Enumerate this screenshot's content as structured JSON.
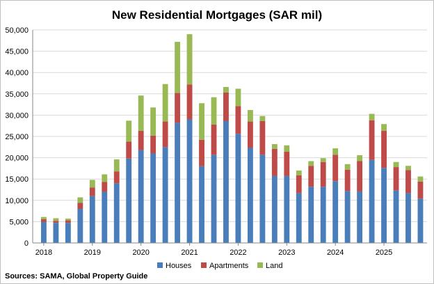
{
  "chart_data": {
    "type": "bar",
    "stacked": true,
    "title": "New Residential Mortgages (SAR mil)",
    "source": "Sources: SAMA, Global Property Guide",
    "ylim": [
      0,
      50000
    ],
    "y_ticks": [
      "0",
      "5,000",
      "10,000",
      "15,000",
      "20,000",
      "25,000",
      "30,000",
      "35,000",
      "40,000",
      "45,000",
      "50,000"
    ],
    "year_labels": [
      "2018",
      "2019",
      "2020",
      "2021",
      "2022",
      "2023",
      "2024",
      "2025"
    ],
    "year_start_index": [
      0,
      4,
      8,
      12,
      16,
      20,
      24,
      28
    ],
    "legend_position": "bottom",
    "colors": {
      "houses": "#4a7ebb",
      "apartments": "#be4b48",
      "land": "#98b954"
    },
    "series": [
      {
        "name": "Houses",
        "key": "houses",
        "values": [
          4900,
          4700,
          4700,
          8000,
          11000,
          12000,
          14000,
          19800,
          21800,
          21000,
          22500,
          28200,
          29000,
          18000,
          20700,
          28600,
          25600,
          22300,
          20700,
          15700,
          15700,
          11700,
          13200,
          13200,
          14500,
          12200,
          12100,
          19500,
          17600,
          12300,
          11700,
          10400
        ]
      },
      {
        "name": "Apartments",
        "key": "apartments",
        "values": [
          700,
          500,
          600,
          1400,
          2000,
          2300,
          2800,
          4000,
          4500,
          4200,
          6000,
          7000,
          8200,
          6200,
          7100,
          6700,
          6500,
          6200,
          7900,
          6400,
          5700,
          4200,
          4900,
          5800,
          6200,
          5000,
          7100,
          9300,
          8700,
          5500,
          5400,
          4000
        ]
      },
      {
        "name": "Land",
        "key": "land",
        "values": [
          500,
          600,
          400,
          1300,
          1800,
          1800,
          2800,
          4900,
          8300,
          6600,
          8800,
          12000,
          11800,
          8600,
          6400,
          1300,
          4100,
          2700,
          1200,
          1100,
          1500,
          1100,
          1100,
          900,
          1500,
          1300,
          1400,
          1500,
          1600,
          1200,
          1000,
          1200
        ]
      }
    ]
  }
}
